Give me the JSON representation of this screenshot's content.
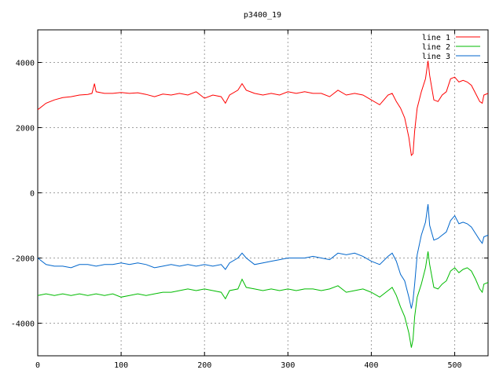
{
  "chart_data": {
    "type": "line",
    "title": "p3400_19",
    "xlabel": "",
    "ylabel": "",
    "xlim": [
      0,
      540
    ],
    "ylim": [
      -5000,
      5000
    ],
    "xticks": [
      0,
      100,
      200,
      300,
      400,
      500
    ],
    "yticks": [
      -4000,
      -2000,
      0,
      2000,
      4000
    ],
    "grid": true,
    "legend": "top-right",
    "series": [
      {
        "name": "line 1",
        "color": "#ff0000",
        "points": [
          [
            0,
            2550
          ],
          [
            10,
            2750
          ],
          [
            20,
            2850
          ],
          [
            30,
            2920
          ],
          [
            40,
            2950
          ],
          [
            50,
            3000
          ],
          [
            60,
            3020
          ],
          [
            65,
            3050
          ],
          [
            68,
            3350
          ],
          [
            70,
            3100
          ],
          [
            80,
            3050
          ],
          [
            90,
            3050
          ],
          [
            100,
            3080
          ],
          [
            110,
            3050
          ],
          [
            120,
            3070
          ],
          [
            130,
            3020
          ],
          [
            140,
            2950
          ],
          [
            150,
            3030
          ],
          [
            160,
            3000
          ],
          [
            170,
            3050
          ],
          [
            180,
            3000
          ],
          [
            190,
            3100
          ],
          [
            200,
            2900
          ],
          [
            210,
            3000
          ],
          [
            220,
            2950
          ],
          [
            225,
            2750
          ],
          [
            230,
            3000
          ],
          [
            240,
            3150
          ],
          [
            245,
            3350
          ],
          [
            250,
            3150
          ],
          [
            260,
            3050
          ],
          [
            270,
            3000
          ],
          [
            280,
            3050
          ],
          [
            290,
            3000
          ],
          [
            300,
            3100
          ],
          [
            310,
            3050
          ],
          [
            320,
            3100
          ],
          [
            330,
            3050
          ],
          [
            340,
            3050
          ],
          [
            350,
            2950
          ],
          [
            360,
            3150
          ],
          [
            370,
            3000
          ],
          [
            380,
            3050
          ],
          [
            390,
            3000
          ],
          [
            400,
            2850
          ],
          [
            410,
            2700
          ],
          [
            420,
            3000
          ],
          [
            425,
            3050
          ],
          [
            430,
            2800
          ],
          [
            435,
            2600
          ],
          [
            440,
            2300
          ],
          [
            445,
            1700
          ],
          [
            448,
            1150
          ],
          [
            450,
            1200
          ],
          [
            452,
            1900
          ],
          [
            455,
            2600
          ],
          [
            460,
            3100
          ],
          [
            465,
            3500
          ],
          [
            468,
            4050
          ],
          [
            470,
            3600
          ],
          [
            475,
            2850
          ],
          [
            480,
            2800
          ],
          [
            485,
            3000
          ],
          [
            490,
            3100
          ],
          [
            495,
            3500
          ],
          [
            500,
            3550
          ],
          [
            505,
            3400
          ],
          [
            510,
            3450
          ],
          [
            515,
            3400
          ],
          [
            520,
            3300
          ],
          [
            525,
            3050
          ],
          [
            530,
            2800
          ],
          [
            533,
            2750
          ],
          [
            535,
            3000
          ],
          [
            540,
            3050
          ]
        ]
      },
      {
        "name": "line 2",
        "color": "#00bb00",
        "points": [
          [
            0,
            -3150
          ],
          [
            10,
            -3100
          ],
          [
            20,
            -3150
          ],
          [
            30,
            -3100
          ],
          [
            40,
            -3150
          ],
          [
            50,
            -3100
          ],
          [
            60,
            -3150
          ],
          [
            70,
            -3100
          ],
          [
            80,
            -3150
          ],
          [
            90,
            -3100
          ],
          [
            100,
            -3200
          ],
          [
            110,
            -3150
          ],
          [
            120,
            -3100
          ],
          [
            130,
            -3150
          ],
          [
            140,
            -3100
          ],
          [
            150,
            -3050
          ],
          [
            160,
            -3050
          ],
          [
            170,
            -3000
          ],
          [
            180,
            -2950
          ],
          [
            190,
            -3000
          ],
          [
            200,
            -2950
          ],
          [
            210,
            -3000
          ],
          [
            220,
            -3050
          ],
          [
            225,
            -3250
          ],
          [
            230,
            -3000
          ],
          [
            240,
            -2950
          ],
          [
            245,
            -2650
          ],
          [
            250,
            -2900
          ],
          [
            260,
            -2950
          ],
          [
            270,
            -3000
          ],
          [
            280,
            -2950
          ],
          [
            290,
            -3000
          ],
          [
            300,
            -2950
          ],
          [
            310,
            -3000
          ],
          [
            320,
            -2950
          ],
          [
            330,
            -2950
          ],
          [
            340,
            -3000
          ],
          [
            350,
            -2950
          ],
          [
            360,
            -2850
          ],
          [
            370,
            -3050
          ],
          [
            380,
            -3000
          ],
          [
            390,
            -2950
          ],
          [
            400,
            -3050
          ],
          [
            410,
            -3200
          ],
          [
            420,
            -3000
          ],
          [
            425,
            -2900
          ],
          [
            430,
            -3150
          ],
          [
            435,
            -3500
          ],
          [
            440,
            -3800
          ],
          [
            445,
            -4300
          ],
          [
            448,
            -4750
          ],
          [
            450,
            -4500
          ],
          [
            452,
            -3800
          ],
          [
            455,
            -3200
          ],
          [
            460,
            -2800
          ],
          [
            465,
            -2300
          ],
          [
            468,
            -1800
          ],
          [
            470,
            -2200
          ],
          [
            475,
            -2900
          ],
          [
            480,
            -2950
          ],
          [
            485,
            -2800
          ],
          [
            490,
            -2700
          ],
          [
            495,
            -2400
          ],
          [
            500,
            -2300
          ],
          [
            505,
            -2450
          ],
          [
            510,
            -2350
          ],
          [
            515,
            -2300
          ],
          [
            520,
            -2400
          ],
          [
            525,
            -2650
          ],
          [
            530,
            -2950
          ],
          [
            533,
            -3050
          ],
          [
            535,
            -2800
          ],
          [
            540,
            -2750
          ]
        ]
      },
      {
        "name": "line 3",
        "color": "#0066cc",
        "points": [
          [
            0,
            -2000
          ],
          [
            10,
            -2200
          ],
          [
            20,
            -2250
          ],
          [
            30,
            -2250
          ],
          [
            40,
            -2300
          ],
          [
            50,
            -2200
          ],
          [
            60,
            -2200
          ],
          [
            70,
            -2250
          ],
          [
            80,
            -2200
          ],
          [
            90,
            -2200
          ],
          [
            100,
            -2150
          ],
          [
            110,
            -2200
          ],
          [
            120,
            -2150
          ],
          [
            130,
            -2200
          ],
          [
            140,
            -2300
          ],
          [
            150,
            -2250
          ],
          [
            160,
            -2200
          ],
          [
            170,
            -2250
          ],
          [
            180,
            -2200
          ],
          [
            190,
            -2250
          ],
          [
            200,
            -2200
          ],
          [
            210,
            -2250
          ],
          [
            220,
            -2200
          ],
          [
            225,
            -2350
          ],
          [
            230,
            -2150
          ],
          [
            240,
            -2000
          ],
          [
            245,
            -1850
          ],
          [
            250,
            -2000
          ],
          [
            260,
            -2200
          ],
          [
            270,
            -2150
          ],
          [
            280,
            -2100
          ],
          [
            290,
            -2050
          ],
          [
            300,
            -2000
          ],
          [
            310,
            -2000
          ],
          [
            320,
            -2000
          ],
          [
            330,
            -1950
          ],
          [
            340,
            -2000
          ],
          [
            350,
            -2050
          ],
          [
            360,
            -1850
          ],
          [
            370,
            -1900
          ],
          [
            380,
            -1850
          ],
          [
            390,
            -1950
          ],
          [
            400,
            -2100
          ],
          [
            410,
            -2200
          ],
          [
            420,
            -1950
          ],
          [
            425,
            -1850
          ],
          [
            430,
            -2100
          ],
          [
            435,
            -2500
          ],
          [
            440,
            -2700
          ],
          [
            445,
            -3200
          ],
          [
            448,
            -3550
          ],
          [
            450,
            -3300
          ],
          [
            452,
            -2800
          ],
          [
            455,
            -1900
          ],
          [
            460,
            -1300
          ],
          [
            465,
            -900
          ],
          [
            468,
            -350
          ],
          [
            470,
            -1000
          ],
          [
            475,
            -1450
          ],
          [
            480,
            -1400
          ],
          [
            485,
            -1300
          ],
          [
            490,
            -1200
          ],
          [
            495,
            -850
          ],
          [
            500,
            -700
          ],
          [
            505,
            -950
          ],
          [
            510,
            -900
          ],
          [
            515,
            -950
          ],
          [
            520,
            -1050
          ],
          [
            525,
            -1250
          ],
          [
            530,
            -1450
          ],
          [
            533,
            -1550
          ],
          [
            535,
            -1350
          ],
          [
            540,
            -1300
          ]
        ]
      }
    ]
  }
}
